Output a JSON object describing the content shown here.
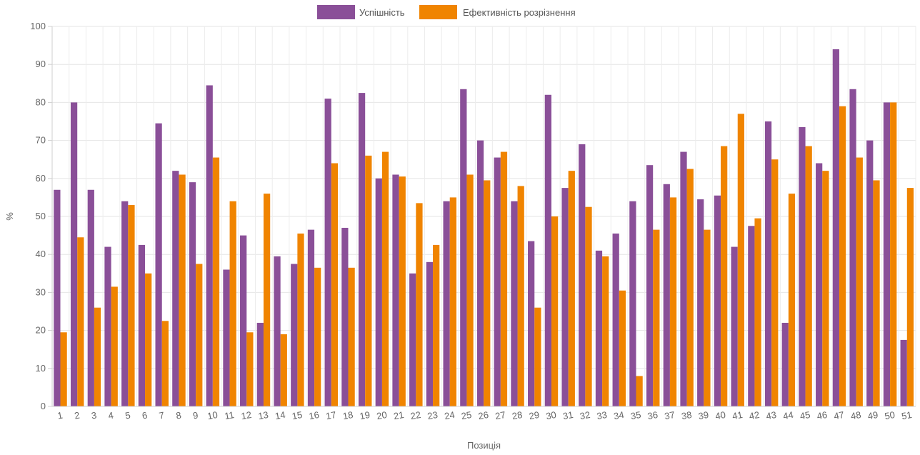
{
  "chart_data": {
    "type": "bar",
    "xlabel": "Позиція",
    "ylabel": "%",
    "ylim": [
      0,
      100
    ],
    "yticks": [
      0,
      10,
      20,
      30,
      40,
      50,
      60,
      70,
      80,
      90,
      100
    ],
    "grid": true,
    "legend_position": "top-center",
    "categories": [
      "1",
      "2",
      "3",
      "4",
      "5",
      "6",
      "7",
      "8",
      "9",
      "10",
      "11",
      "12",
      "13",
      "14",
      "15",
      "16",
      "17",
      "18",
      "19",
      "20",
      "21",
      "22",
      "23",
      "24",
      "25",
      "26",
      "27",
      "28",
      "29",
      "30",
      "31",
      "32",
      "33",
      "34",
      "35",
      "36",
      "37",
      "38",
      "39",
      "40",
      "41",
      "42",
      "43",
      "44",
      "45",
      "46",
      "47",
      "48",
      "49",
      "50",
      "51"
    ],
    "series": [
      {
        "name": "Успішність",
        "color": "#8a4f98",
        "values": [
          57,
          80,
          57,
          42,
          54,
          42.5,
          74.5,
          62,
          59,
          84.5,
          36,
          45,
          22,
          39.5,
          37.5,
          46.5,
          81,
          47,
          82.5,
          60,
          61,
          35,
          38,
          54,
          83.5,
          70,
          65.5,
          54,
          43.5,
          82,
          57.5,
          69,
          41,
          45.5,
          54,
          63.5,
          58.5,
          67,
          54.5,
          55.5,
          42,
          47.5,
          75,
          22,
          73.5,
          64,
          94,
          83.5,
          70,
          80,
          17.5
        ]
      },
      {
        "name": "Ефективність розрізнення",
        "color": "#f08400",
        "values": [
          19.5,
          44.5,
          26,
          31.5,
          53,
          35,
          22.5,
          61,
          37.5,
          65.5,
          54,
          19.5,
          56,
          19,
          45.5,
          36.5,
          64,
          36.5,
          66,
          67,
          60.5,
          53.5,
          42.5,
          55,
          61,
          59.5,
          67,
          58,
          26,
          50,
          62,
          52.5,
          39.5,
          30.5,
          8,
          46.5,
          55,
          62.5,
          46.5,
          68.5,
          77,
          49.5,
          65,
          56,
          68.5,
          62,
          79,
          65.5,
          59.5,
          80,
          57.5
        ]
      }
    ]
  }
}
